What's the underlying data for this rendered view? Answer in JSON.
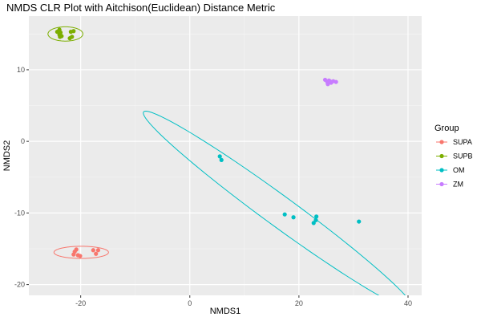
{
  "chart_data": {
    "type": "scatter",
    "title": "NMDS CLR Plot with Aitchison(Euclidean) Distance Metric",
    "xlabel": "NMDS1",
    "ylabel": "NMDS2",
    "xlim": [
      -29.5,
      42.5
    ],
    "ylim": [
      -21.5,
      17.5
    ],
    "x_ticks": [
      -20,
      0,
      20,
      40
    ],
    "y_ticks": [
      -20,
      -10,
      0,
      10
    ],
    "x_minor": [
      -30,
      -10,
      10,
      30
    ],
    "y_minor": [
      -15,
      -5,
      5,
      15
    ],
    "grid": true,
    "legend": {
      "title": "Group",
      "position": "right"
    },
    "series": [
      {
        "name": "SUPA",
        "color": "#F8766D",
        "points": [
          [
            -20.8,
            -15.1
          ],
          [
            -21.1,
            -15.4
          ],
          [
            -21.3,
            -15.8
          ],
          [
            -20.5,
            -15.9
          ],
          [
            -20.1,
            -16.0
          ],
          [
            -17.7,
            -15.2
          ],
          [
            -16.8,
            -15.2
          ],
          [
            -17.2,
            -15.7
          ]
        ],
        "ellipse": {
          "cx": -19.9,
          "cy": -15.5,
          "rx": 5.0,
          "ry": 0.85,
          "angle_deg": 0
        }
      },
      {
        "name": "SUPB",
        "color": "#7CAE00",
        "points": [
          [
            -24.3,
            15.3
          ],
          [
            -23.9,
            15.6
          ],
          [
            -23.7,
            15.2
          ],
          [
            -23.9,
            14.9
          ],
          [
            -23.5,
            14.7
          ],
          [
            -23.8,
            14.6
          ],
          [
            -21.8,
            15.3
          ],
          [
            -21.3,
            15.4
          ],
          [
            -21.6,
            14.6
          ],
          [
            -22.0,
            14.4
          ]
        ],
        "ellipse": {
          "cx": -22.8,
          "cy": 15.0,
          "rx": 3.2,
          "ry": 1.0,
          "angle_deg": 0
        }
      },
      {
        "name": "OM",
        "color": "#00BFC4",
        "points": [
          [
            5.5,
            -2.1
          ],
          [
            5.8,
            -2.6
          ],
          [
            17.4,
            -10.2
          ],
          [
            19.0,
            -10.6
          ],
          [
            22.7,
            -11.4
          ],
          [
            23.1,
            -11.0
          ],
          [
            23.2,
            -10.5
          ],
          [
            31.0,
            -11.2
          ]
        ],
        "ellipse": {
          "cx": 16.25,
          "cy": -9.65,
          "rx": 28.3,
          "ry": 2.3,
          "angle_deg": -29
        }
      },
      {
        "name": "ZM",
        "color": "#C77CFF",
        "points": [
          [
            24.8,
            8.6
          ],
          [
            25.2,
            8.3
          ],
          [
            25.5,
            8.5
          ],
          [
            25.9,
            8.2
          ],
          [
            26.3,
            8.4
          ],
          [
            26.8,
            8.3
          ],
          [
            25.3,
            8.0
          ],
          [
            25.7,
            8.4
          ]
        ],
        "ellipse": null
      }
    ]
  }
}
